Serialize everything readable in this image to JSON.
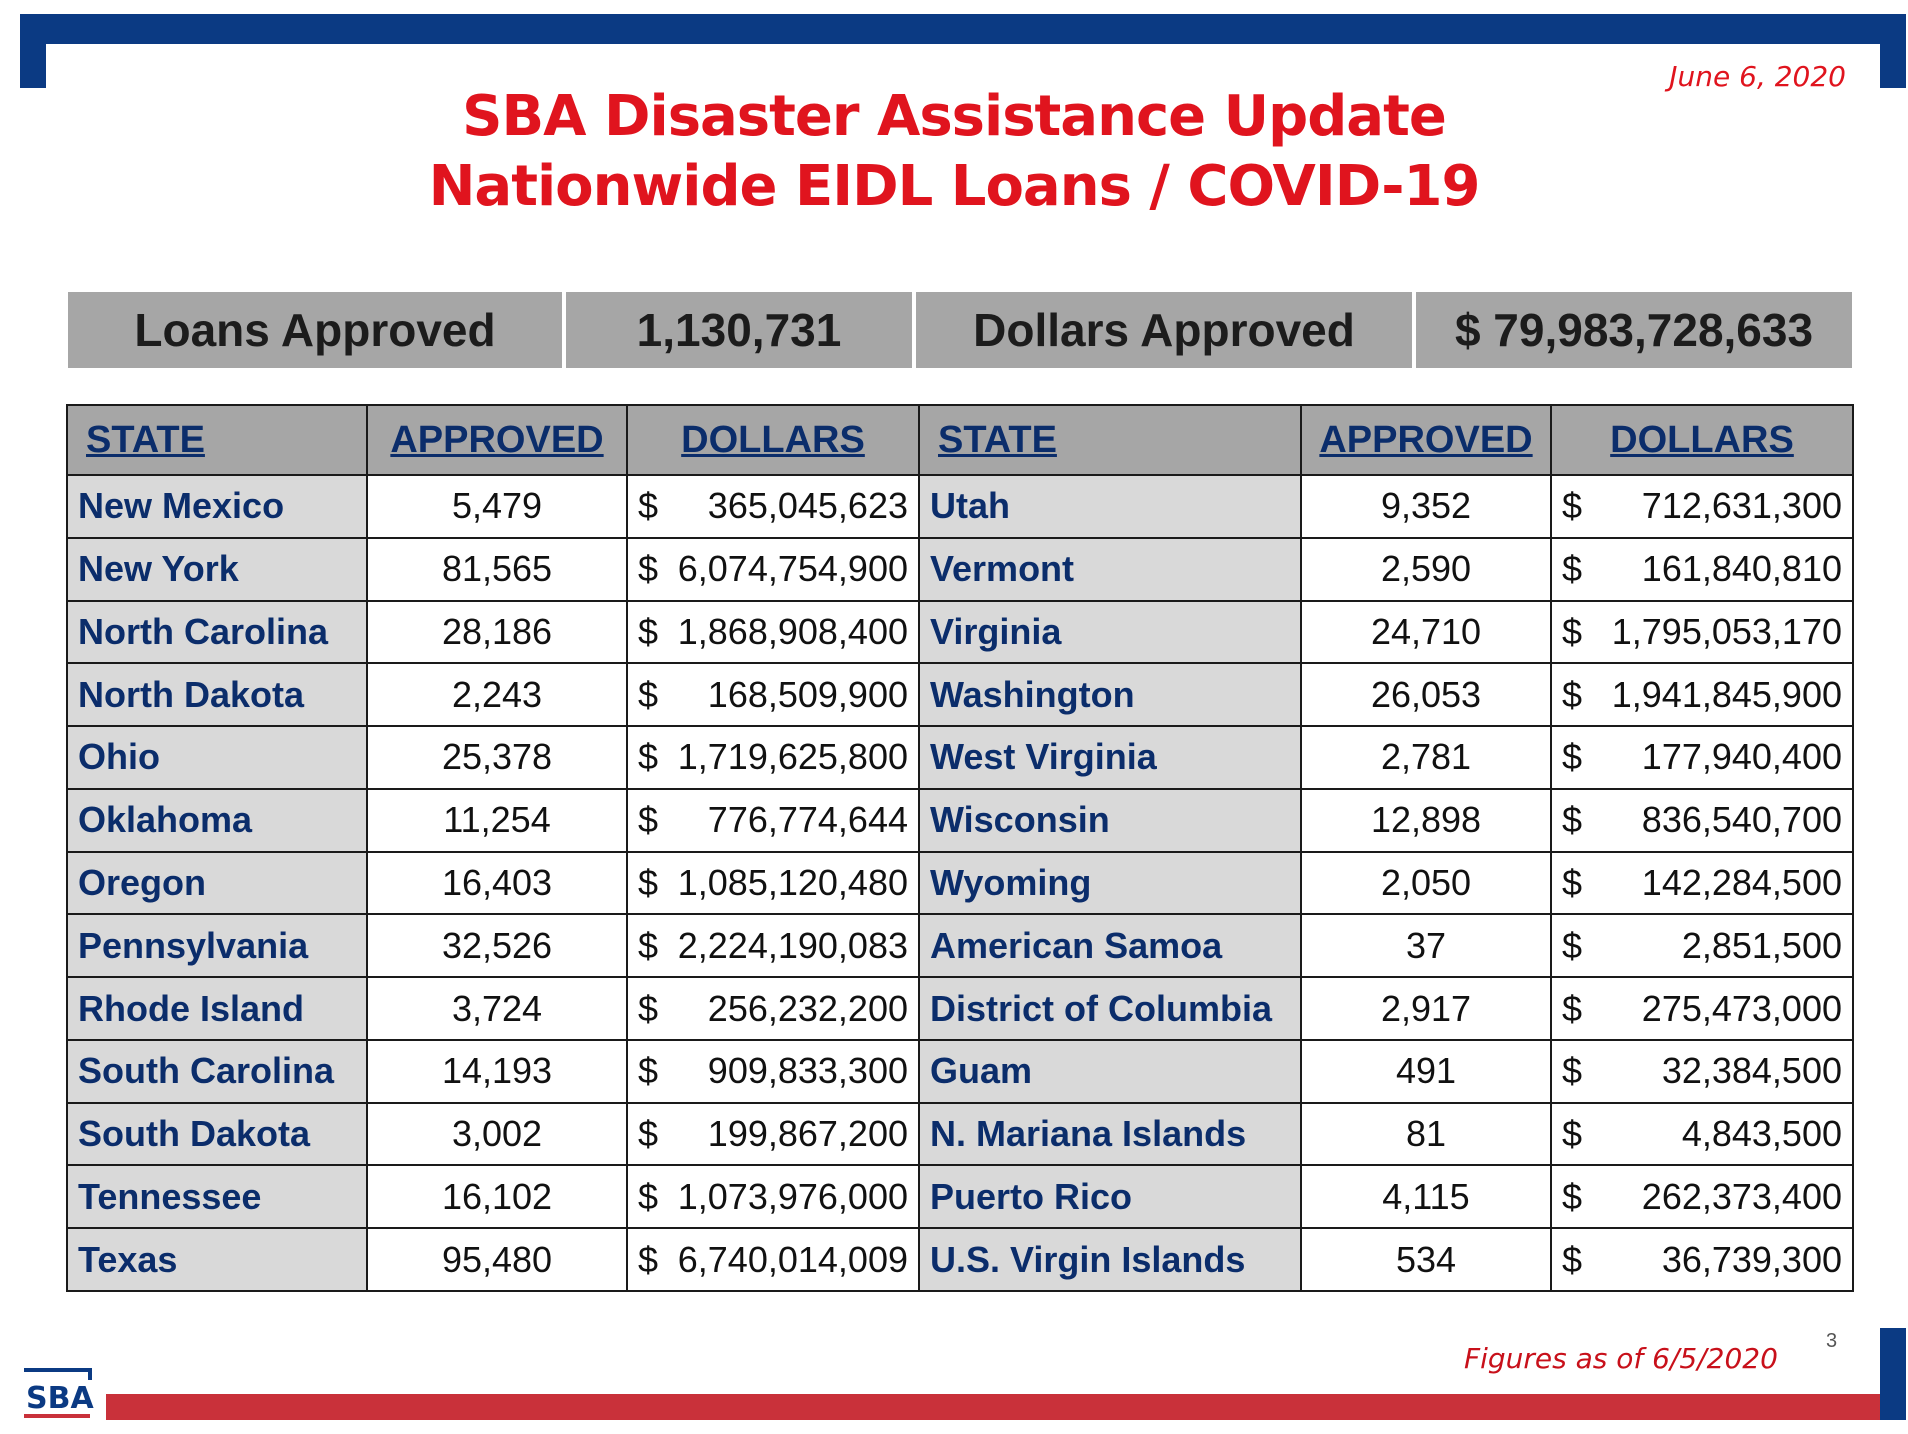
{
  "date": "June 6, 2020",
  "title_line1": "SBA Disaster Assistance Update",
  "title_line2": "Nationwide EIDL Loans / COVID-19",
  "summary": {
    "loans_label": "Loans Approved",
    "loans_value": "1,130,731",
    "dollars_label": "Dollars Approved",
    "dollars_value": "$ 79,983,728,633"
  },
  "headers": [
    "STATE",
    "APPROVED",
    "DOLLARS",
    "STATE",
    "APPROVED",
    "DOLLARS"
  ],
  "rows": [
    [
      {
        "state": "New Mexico",
        "approved": "5,479",
        "dollars": "$   365,045,623"
      },
      {
        "state": "Utah",
        "approved": "9,352",
        "dollars": "$    712,631,300"
      }
    ],
    [
      {
        "state": "New York",
        "approved": "81,565",
        "dollars": "$6,074,754,900"
      },
      {
        "state": "Vermont",
        "approved": "2,590",
        "dollars": "$    161,840,810"
      }
    ],
    [
      {
        "state": "North Carolina",
        "approved": "28,186",
        "dollars": "$1,868,908,400"
      },
      {
        "state": "Virginia",
        "approved": "24,710",
        "dollars": "$ 1,795,053,170"
      }
    ],
    [
      {
        "state": "North Dakota",
        "approved": "2,243",
        "dollars": "$   168,509,900"
      },
      {
        "state": "Washington",
        "approved": "26,053",
        "dollars": "$ 1,941,845,900"
      }
    ],
    [
      {
        "state": "Ohio",
        "approved": "25,378",
        "dollars": "$1,719,625,800"
      },
      {
        "state": "West Virginia",
        "approved": "2,781",
        "dollars": "$    177,940,400"
      }
    ],
    [
      {
        "state": "Oklahoma",
        "approved": "11,254",
        "dollars": "$   776,774,644"
      },
      {
        "state": "Wisconsin",
        "approved": "12,898",
        "dollars": "$    836,540,700"
      }
    ],
    [
      {
        "state": "Oregon",
        "approved": "16,403",
        "dollars": "$1,085,120,480"
      },
      {
        "state": "Wyoming",
        "approved": "2,050",
        "dollars": "$    142,284,500"
      }
    ],
    [
      {
        "state": "Pennsylvania",
        "approved": "32,526",
        "dollars": "$2,224,190,083"
      },
      {
        "state": "American Samoa",
        "approved": "37",
        "dollars": "$        2,851,500"
      }
    ],
    [
      {
        "state": "Rhode Island",
        "approved": "3,724",
        "dollars": "$   256,232,200"
      },
      {
        "state": "District of Columbia",
        "approved": "2,917",
        "dollars": "$    275,473,000"
      }
    ],
    [
      {
        "state": "South Carolina",
        "approved": "14,193",
        "dollars": "$   909,833,300"
      },
      {
        "state": "Guam",
        "approved": "491",
        "dollars": "$      32,384,500"
      }
    ],
    [
      {
        "state": "South Dakota",
        "approved": "3,002",
        "dollars": "$   199,867,200"
      },
      {
        "state": "N. Mariana Islands",
        "approved": "81",
        "dollars": "$        4,843,500"
      }
    ],
    [
      {
        "state": "Tennessee",
        "approved": "16,102",
        "dollars": "$1,073,976,000"
      },
      {
        "state": "Puerto Rico",
        "approved": "4,115",
        "dollars": "$    262,373,400"
      }
    ],
    [
      {
        "state": "Texas",
        "approved": "95,480",
        "dollars": "$6,740,014,009"
      },
      {
        "state": "U.S. Virgin Islands",
        "approved": "534",
        "dollars": "$      36,739,300"
      }
    ]
  ],
  "footer": {
    "figures": "Figures as of 6/5/2020",
    "page_number": "3",
    "logo_text": "SBA"
  },
  "colors": {
    "title_red": "#e0141e",
    "navy": "#0b3a83",
    "state_text": "#0b2d6b",
    "header_gray": "#a6a6a6",
    "state_cell_gray": "#d9d9d9",
    "bottom_red": "#c9313a"
  }
}
